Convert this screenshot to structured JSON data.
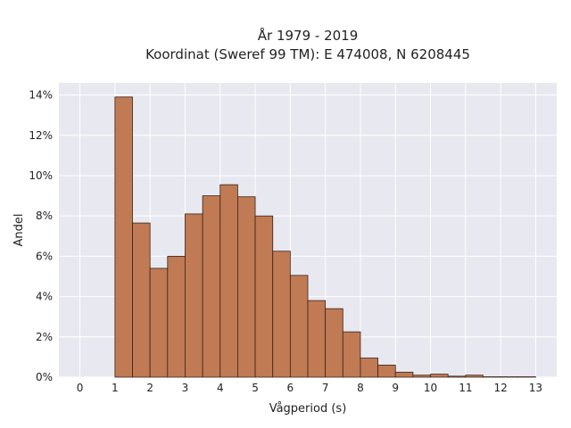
{
  "chart_data": {
    "type": "bar",
    "title_line1": "År 1979 - 2019",
    "title_line2": "Koordinat (Sweref 99 TM): E 474008, N 6208445",
    "xlabel": "Vågperiod (s)",
    "ylabel": "Andel",
    "bin_width": 0.5,
    "bins_start": [
      0,
      0.5,
      1,
      1.5,
      2,
      2.5,
      3,
      3.5,
      4,
      4.5,
      5,
      5.5,
      6,
      6.5,
      7,
      7.5,
      8,
      8.5,
      9,
      9.5,
      10,
      10.5,
      11,
      11.5,
      12,
      12.5
    ],
    "values": [
      0.0,
      0.0,
      13.9,
      7.65,
      5.4,
      6.0,
      8.1,
      9.0,
      9.55,
      8.95,
      8.0,
      6.25,
      5.05,
      3.8,
      3.4,
      2.25,
      0.95,
      0.6,
      0.25,
      0.1,
      0.15,
      0.05,
      0.1,
      0.02,
      0.02,
      0.02
    ],
    "xlim": [
      -0.6,
      13.6
    ],
    "ylim": [
      0,
      14.6
    ],
    "xticks": [
      0,
      1,
      2,
      3,
      4,
      5,
      6,
      7,
      8,
      9,
      10,
      11,
      12,
      13
    ],
    "yticks": [
      0,
      2,
      4,
      6,
      8,
      10,
      12,
      14
    ],
    "ytick_labels": [
      "0%",
      "2%",
      "4%",
      "6%",
      "8%",
      "10%",
      "12%",
      "14%"
    ],
    "bar_color": "#c07a54",
    "plot_background": "#e8e8f0",
    "grid": true
  }
}
